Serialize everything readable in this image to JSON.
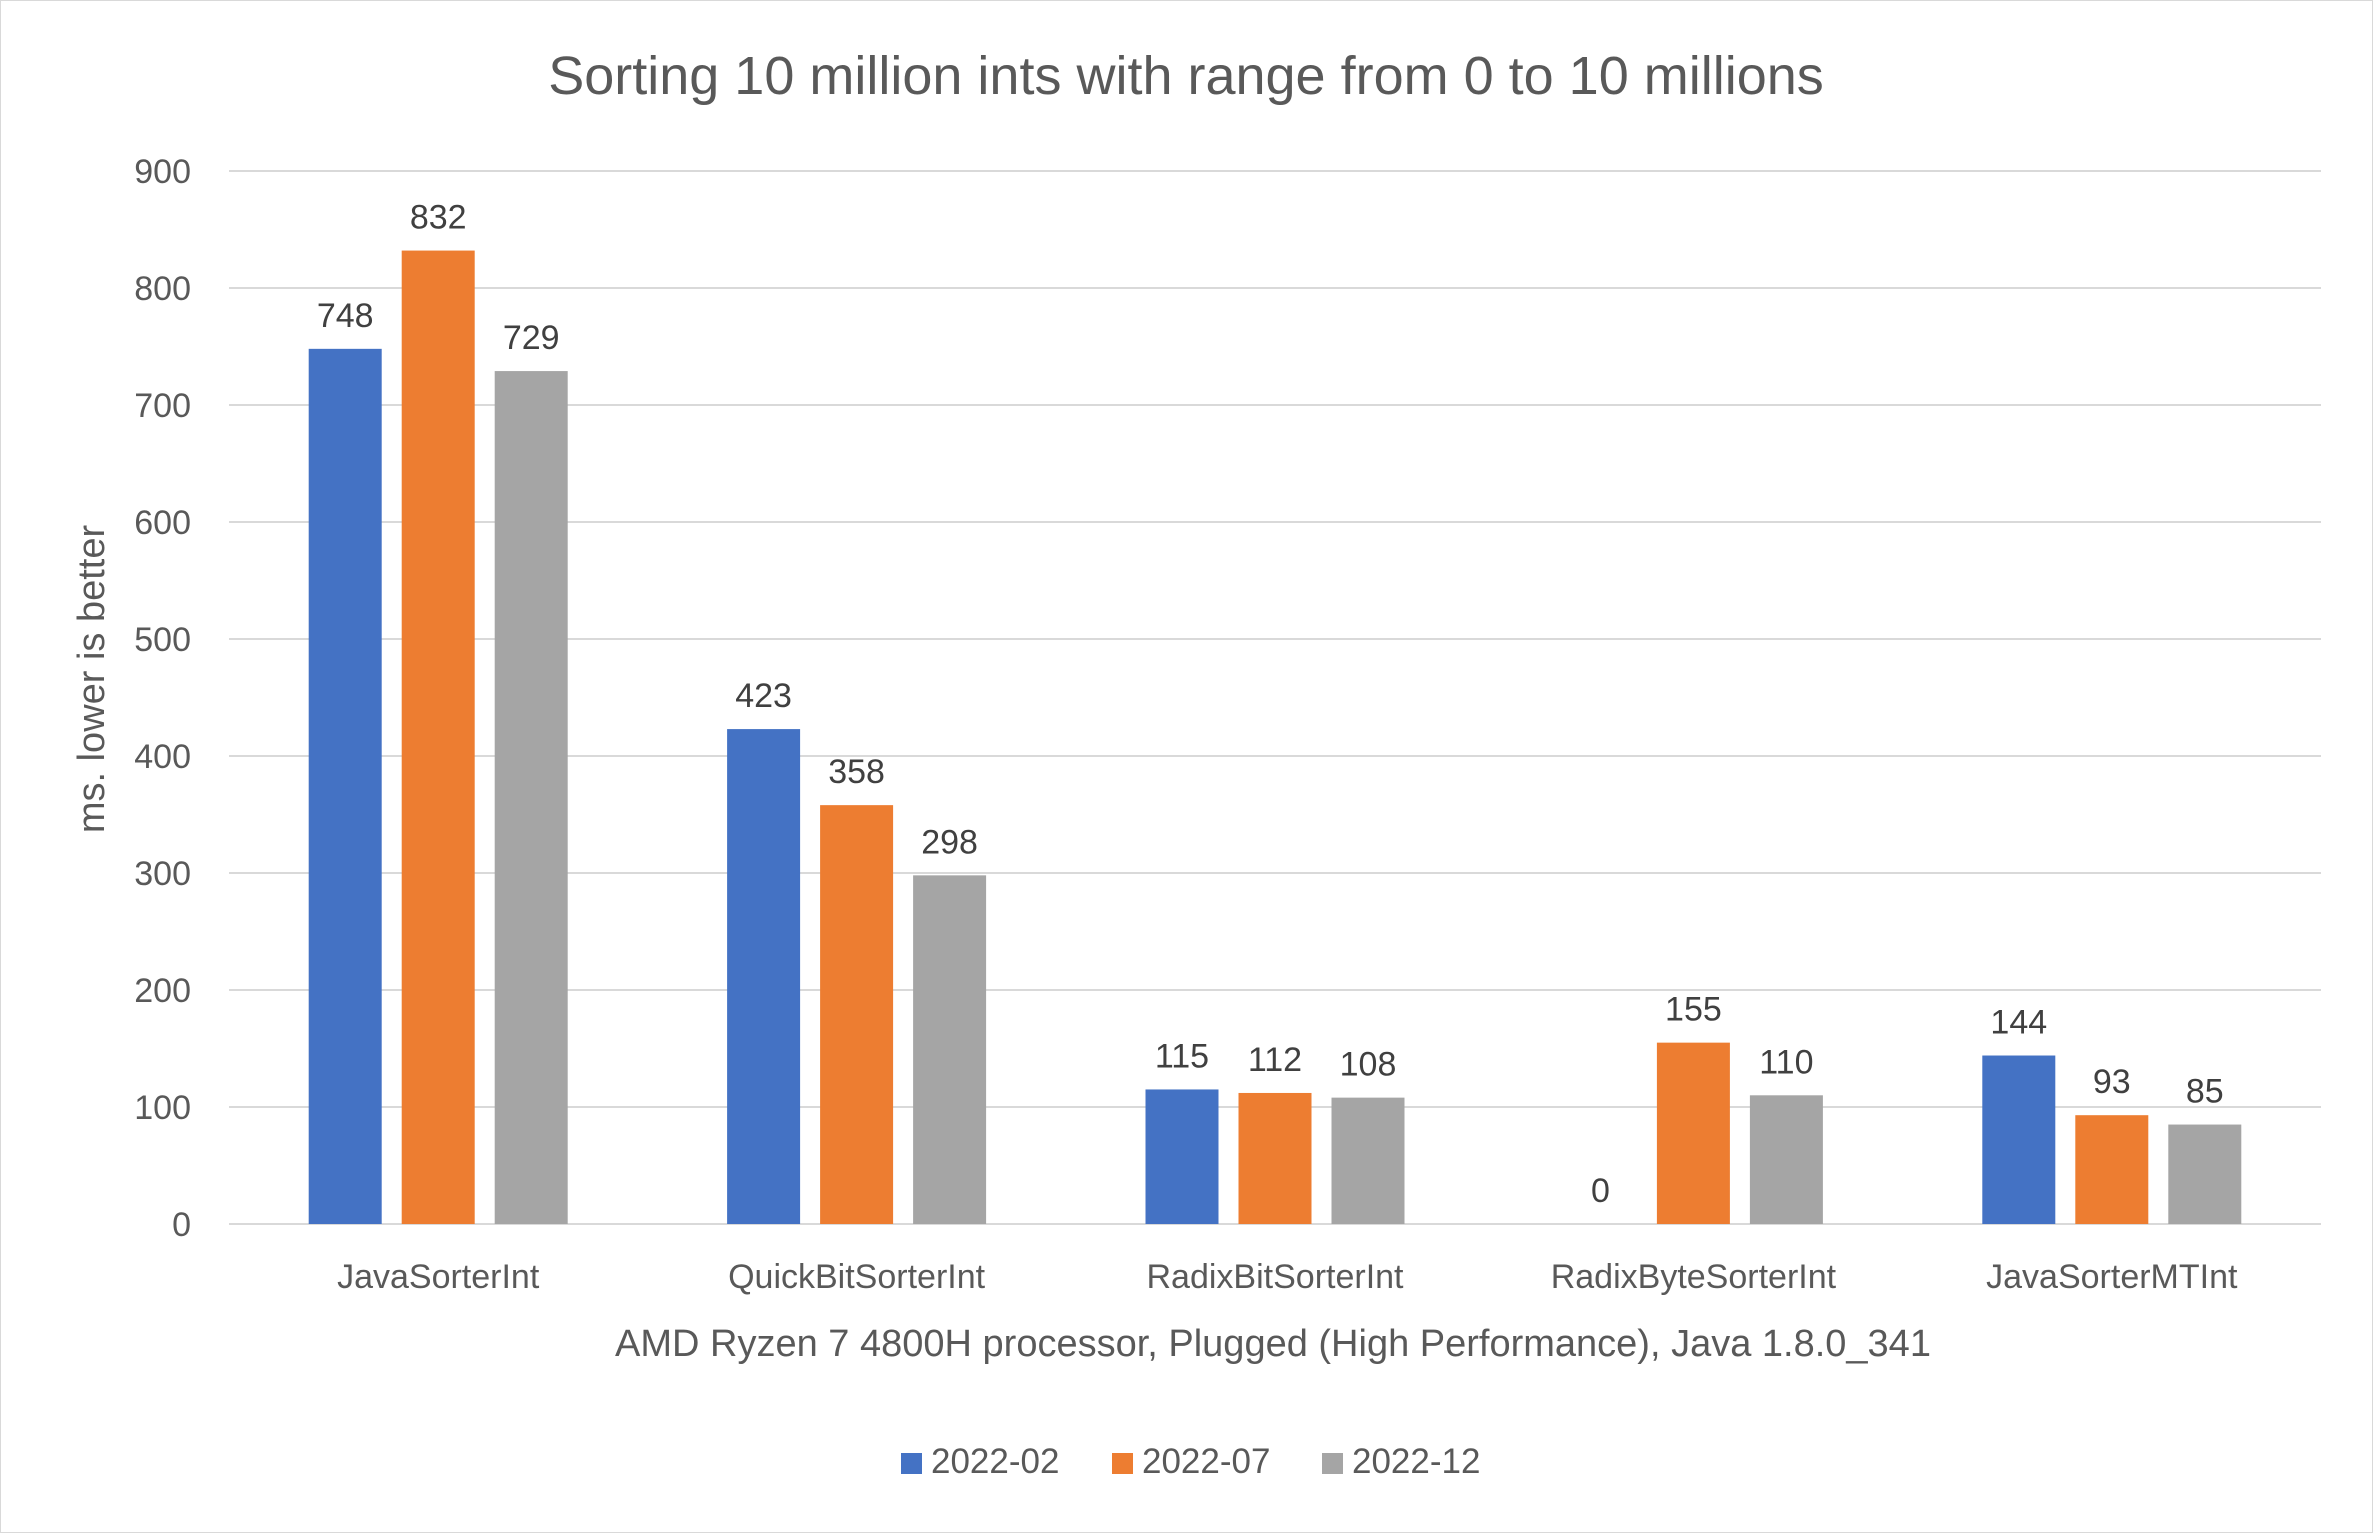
{
  "chart_data": {
    "type": "bar",
    "title": "Sorting 10 million ints with range from 0 to 10 millions",
    "xlabel": "AMD Ryzen 7 4800H processor, Plugged (High Performance), Java 1.8.0_341",
    "ylabel": "ms. lower is better",
    "ylim": [
      0,
      900
    ],
    "yticks": [
      0,
      100,
      200,
      300,
      400,
      500,
      600,
      700,
      800,
      900
    ],
    "grid": true,
    "legend_position": "bottom",
    "categories": [
      "JavaSorterInt",
      "QuickBitSorterInt",
      "RadixBitSorterInt",
      "RadixByteSorterInt",
      "JavaSorterMTInt"
    ],
    "series": [
      {
        "name": "2022-02",
        "color": "#4472C4",
        "values": [
          748,
          423,
          115,
          0,
          144
        ]
      },
      {
        "name": "2022-07",
        "color": "#ED7D31",
        "values": [
          832,
          358,
          112,
          155,
          93
        ]
      },
      {
        "name": "2022-12",
        "color": "#A5A5A5",
        "values": [
          729,
          298,
          108,
          110,
          85
        ]
      }
    ],
    "gridline_color": "#d9d9d9"
  }
}
